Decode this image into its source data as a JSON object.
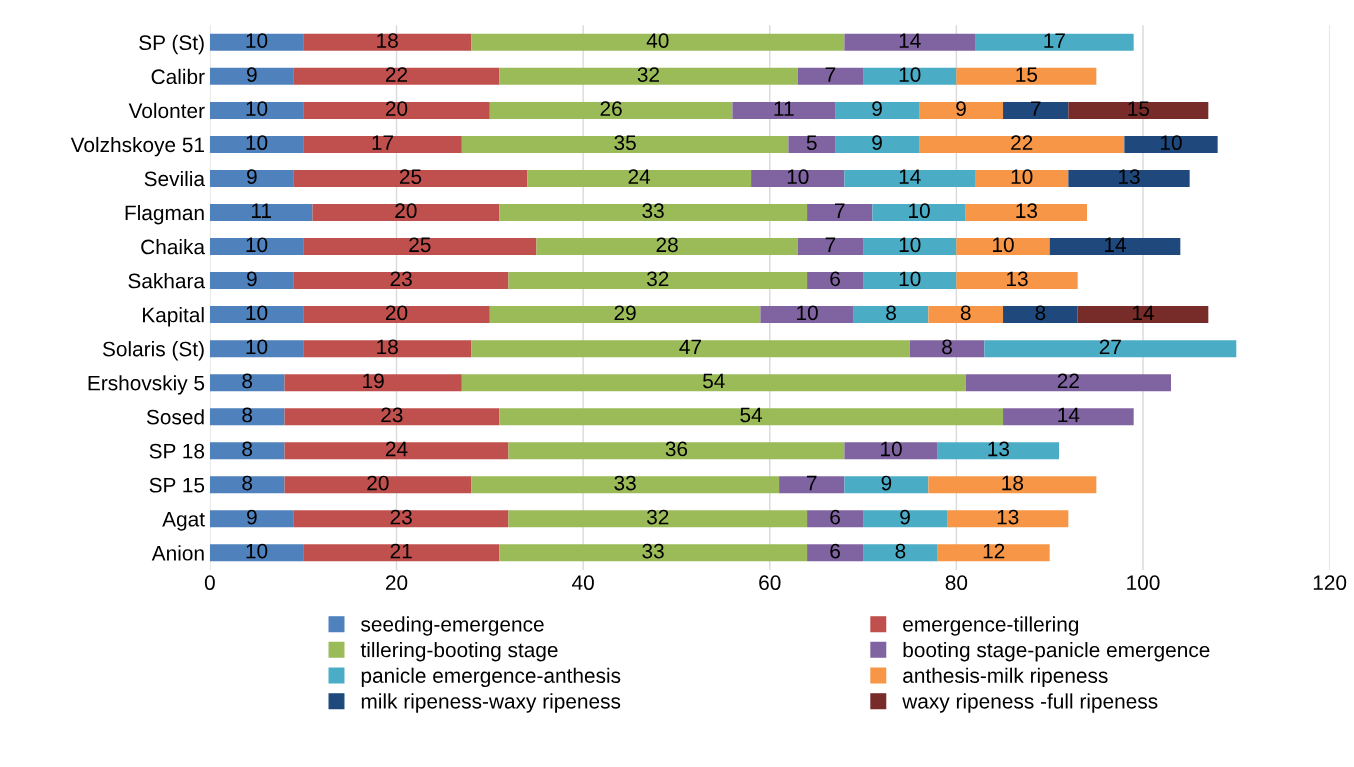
{
  "chart_data": {
    "type": "bar",
    "orientation": "horizontal",
    "stacked": true,
    "data_labels": true,
    "grid": "x",
    "legend": "bottom",
    "categories": [
      "SP (St)",
      "Calibr",
      "Volonter",
      "Volzhskoye 51",
      "Sevilia",
      "Flagman",
      "Chaika",
      "Sakhara",
      "Kapital",
      "Solaris (St)",
      "Ershovskiy 5",
      "Sosed",
      "SP 18",
      "SP 15",
      "Agat",
      "Anion"
    ],
    "xlim": [
      0,
      120
    ],
    "xticks": [
      0,
      20,
      40,
      60,
      80,
      100,
      120
    ],
    "series": [
      {
        "name": "seeding-emergence",
        "color": "#4f81bd",
        "values": [
          10,
          9,
          10,
          10,
          9,
          11,
          10,
          9,
          10,
          10,
          8,
          8,
          8,
          8,
          9,
          10
        ]
      },
      {
        "name": "emergence-tillering",
        "color": "#c0504d",
        "values": [
          18,
          22,
          20,
          17,
          25,
          20,
          25,
          23,
          20,
          18,
          19,
          23,
          24,
          20,
          23,
          21
        ]
      },
      {
        "name": "tillering-booting stage",
        "color": "#9bbb59",
        "values": [
          40,
          32,
          26,
          35,
          24,
          33,
          28,
          32,
          29,
          47,
          54,
          54,
          36,
          33,
          32,
          33
        ]
      },
      {
        "name": "booting stage-panicle emergence",
        "color": "#8064a2",
        "values": [
          14,
          7,
          11,
          5,
          10,
          7,
          7,
          6,
          10,
          8,
          22,
          14,
          10,
          7,
          6,
          6
        ]
      },
      {
        "name": "panicle emergence-anthesis",
        "color": "#4bacc6",
        "values": [
          17,
          10,
          9,
          9,
          14,
          10,
          10,
          10,
          8,
          27,
          null,
          null,
          13,
          9,
          9,
          8
        ]
      },
      {
        "name": "anthesis-milk ripeness",
        "color": "#f79646",
        "values": [
          null,
          15,
          9,
          22,
          10,
          13,
          10,
          13,
          8,
          null,
          null,
          null,
          null,
          18,
          13,
          12
        ]
      },
      {
        "name": "milk ripeness-waxy ripeness",
        "color": "#1f497d",
        "values": [
          null,
          null,
          7,
          10,
          13,
          null,
          14,
          null,
          8,
          null,
          null,
          null,
          null,
          null,
          null,
          null
        ]
      },
      {
        "name": "waxy ripeness -full ripeness",
        "color": "#772c2a",
        "values": [
          null,
          null,
          15,
          null,
          null,
          null,
          null,
          null,
          14,
          null,
          null,
          null,
          null,
          null,
          null,
          null
        ]
      }
    ]
  }
}
